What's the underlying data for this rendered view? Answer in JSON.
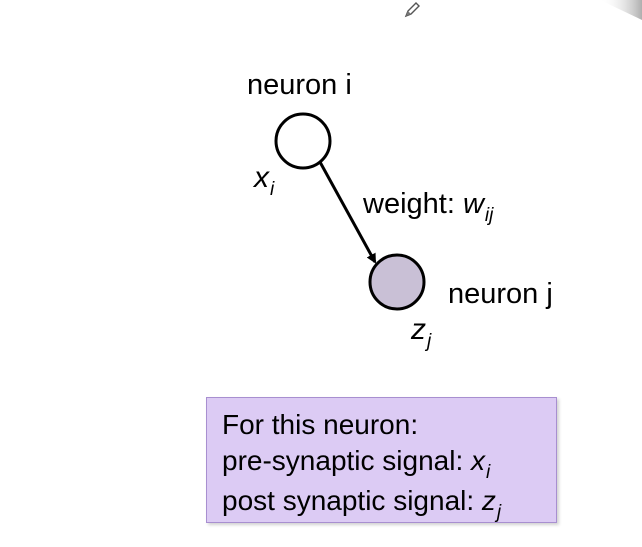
{
  "diagram": {
    "neuron_i_label": "neuron i",
    "neuron_j_label": "neuron j",
    "x_var": "x",
    "x_sub": "i",
    "z_var": "z",
    "z_sub": "j",
    "weight_prefix": "weight: ",
    "weight_var": "w",
    "weight_sub": "ij",
    "colors": {
      "neuron_i_fill": "#ffffff",
      "neuron_j_fill": "#c9c0d6",
      "stroke": "#000000"
    }
  },
  "info_box": {
    "line1": "For this neuron:",
    "line2_prefix": "pre-synaptic signal: ",
    "line2_var": "x",
    "line2_sub": "i",
    "line3_prefix": "post synaptic signal: ",
    "line3_var": "z",
    "line3_sub": "j",
    "background": "#dccbf4"
  },
  "icons": {
    "pencil": "pencil-icon"
  }
}
